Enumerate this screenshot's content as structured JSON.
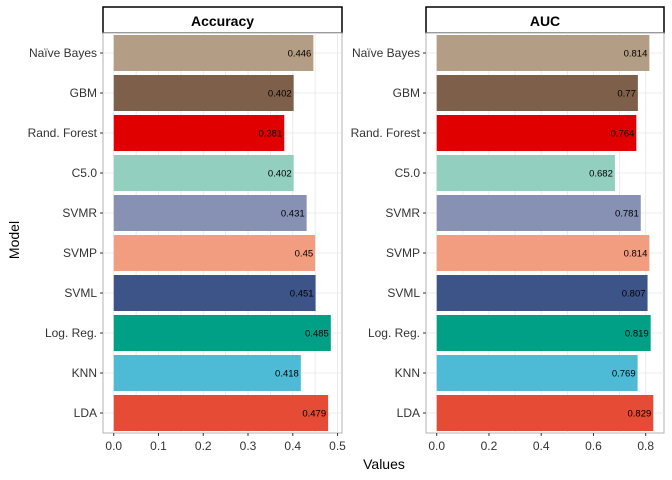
{
  "chart_data": {
    "type": "bar",
    "orientation": "horizontal",
    "xlabel": "Values",
    "ylabel": "Model",
    "categories": [
      "Naïve Bayes",
      "GBM",
      "Rand. Forest",
      "C5.0",
      "SVMR",
      "SVMP",
      "SVML",
      "Log. Reg.",
      "KNN",
      "LDA"
    ],
    "colors": [
      "#B39D84",
      "#7E604A",
      "#E00000",
      "#92CFBF",
      "#8691B4",
      "#F29C80",
      "#3C5488",
      "#00A087",
      "#4DBBD5",
      "#E64B35"
    ],
    "grid": true,
    "panels": [
      {
        "title": "Accuracy",
        "values": [
          0.446,
          0.402,
          0.381,
          0.402,
          0.431,
          0.45,
          0.451,
          0.485,
          0.418,
          0.479
        ],
        "labels": [
          "0.446",
          "0.402",
          "0.381",
          "0.402",
          "0.431",
          "0.45",
          "0.451",
          "0.485",
          "0.418",
          "0.479"
        ],
        "xlim": [
          -0.024,
          0.51
        ],
        "xticks": [
          0.0,
          0.1,
          0.2,
          0.3,
          0.4,
          0.5
        ],
        "xtick_labels": [
          "0.0",
          "0.1",
          "0.2",
          "0.3",
          "0.4",
          "0.5"
        ]
      },
      {
        "title": "AUC",
        "values": [
          0.814,
          0.77,
          0.764,
          0.682,
          0.781,
          0.814,
          0.807,
          0.819,
          0.769,
          0.829
        ],
        "labels": [
          "0.814",
          "0.77",
          "0.764",
          "0.682",
          "0.781",
          "0.814",
          "0.807",
          "0.819",
          "0.769",
          "0.829"
        ],
        "xlim": [
          -0.041,
          0.87
        ],
        "xticks": [
          0.0,
          0.2,
          0.4,
          0.6,
          0.8
        ],
        "xtick_labels": [
          "0.0",
          "0.2",
          "0.4",
          "0.6",
          "0.8"
        ]
      }
    ]
  }
}
